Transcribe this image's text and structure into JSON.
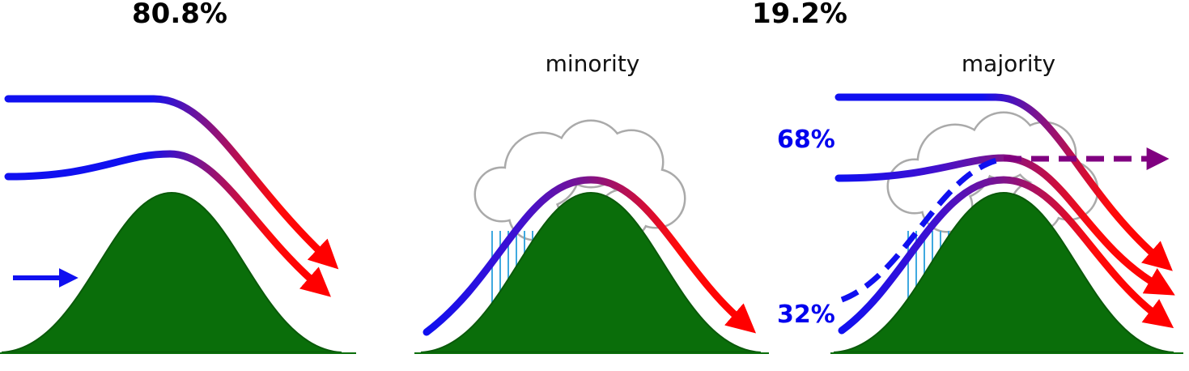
{
  "left": {
    "share": "80.8%"
  },
  "right": {
    "share": "19.2%",
    "minority": {
      "label": "minority"
    },
    "majority": {
      "label": "majority",
      "upper_share": "68%",
      "lower_share": "32%"
    }
  }
}
